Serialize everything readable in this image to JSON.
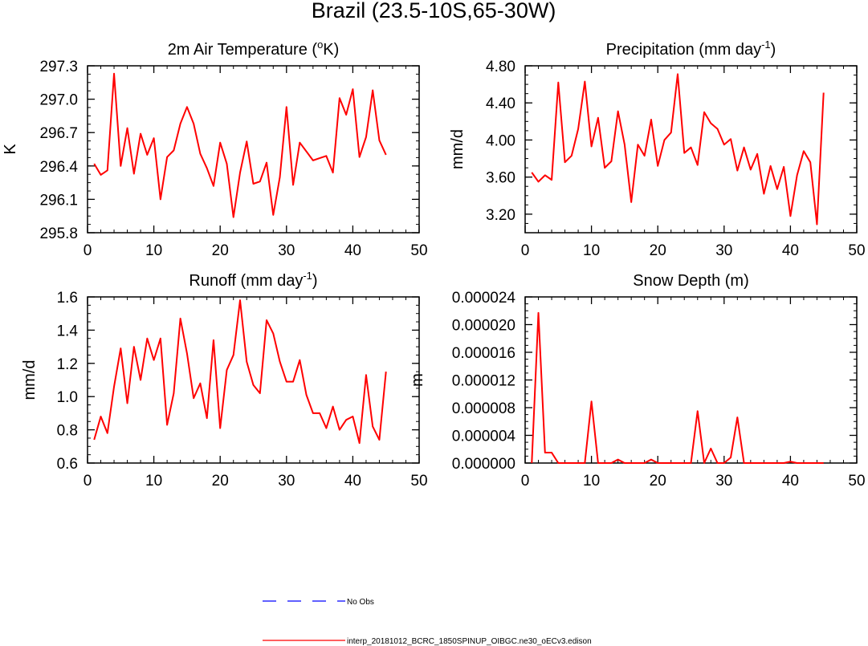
{
  "figure_title": "Brazil (23.5-10S,65-30W)",
  "colors": {
    "model_line": "#ff0000",
    "obs_line": "#0000ff",
    "axes": "#000000"
  },
  "legend": [
    {
      "label": "No Obs",
      "style": "dashed",
      "color": "#0000ff"
    },
    {
      "label": "interp_20181012_BCRC_1850SPINUP_OIBGC.ne30_oECv3.edison",
      "style": "solid",
      "color": "#ff0000"
    }
  ],
  "chart_data": [
    {
      "type": "line",
      "title": "2m Air Temperature (°K)",
      "title_base": "2m Air Temperature (",
      "title_sup": "o",
      "title_tail": "K)",
      "ylabel": "K",
      "xlabel": "",
      "xlim": [
        0,
        50
      ],
      "ylim": [
        295.8,
        297.3
      ],
      "xticks": [
        "0",
        "10",
        "20",
        "30",
        "40",
        "50"
      ],
      "yticks": [
        "295.8",
        "296.1",
        "296.4",
        "296.7",
        "297.0",
        "297.3"
      ],
      "x": [
        1,
        2,
        3,
        4,
        5,
        6,
        7,
        8,
        9,
        10,
        11,
        12,
        13,
        14,
        15,
        16,
        17,
        18,
        19,
        20,
        21,
        22,
        23,
        24,
        25,
        26,
        27,
        28,
        29,
        30,
        31,
        32,
        33,
        34,
        35,
        36,
        37,
        38,
        39,
        40,
        41,
        42,
        43,
        44,
        45
      ],
      "series": [
        {
          "values": [
            296.42,
            296.32,
            296.36,
            297.23,
            296.4,
            296.74,
            296.33,
            296.69,
            296.5,
            296.65,
            296.1,
            296.48,
            296.54,
            296.78,
            296.93,
            296.78,
            296.51,
            296.38,
            296.22,
            296.61,
            296.42,
            295.94,
            296.34,
            296.62,
            296.24,
            296.26,
            296.43,
            295.96,
            296.3,
            296.93,
            296.23,
            296.61,
            296.53,
            296.45,
            296.47,
            296.49,
            296.34,
            297.01,
            296.86,
            297.09,
            296.48,
            296.66,
            297.08,
            296.63,
            296.5
          ]
        }
      ]
    },
    {
      "type": "line",
      "title": "Precipitation (mm day-1)",
      "title_base": "Precipitation (mm day",
      "title_sup": "-1",
      "title_tail": ")",
      "ylabel": "mm/d",
      "xlabel": "",
      "xlim": [
        0,
        50
      ],
      "ylim": [
        3.0,
        4.8
      ],
      "xticks": [
        "0",
        "10",
        "20",
        "30",
        "40",
        "50"
      ],
      "yticks": [
        "3.20",
        "3.60",
        "4.00",
        "4.40",
        "4.80"
      ],
      "x": [
        1,
        2,
        3,
        4,
        5,
        6,
        7,
        8,
        9,
        10,
        11,
        12,
        13,
        14,
        15,
        16,
        17,
        18,
        19,
        20,
        21,
        22,
        23,
        24,
        25,
        26,
        27,
        28,
        29,
        30,
        31,
        32,
        33,
        34,
        35,
        36,
        37,
        38,
        39,
        40,
        41,
        42,
        43,
        44,
        45
      ],
      "series": [
        {
          "values": [
            3.65,
            3.55,
            3.62,
            3.57,
            4.62,
            3.76,
            3.83,
            4.12,
            4.63,
            3.93,
            4.24,
            3.7,
            3.77,
            4.31,
            3.95,
            3.33,
            3.95,
            3.83,
            4.22,
            3.72,
            4.0,
            4.08,
            4.71,
            3.86,
            3.92,
            3.73,
            4.3,
            4.18,
            4.12,
            3.95,
            4.01,
            3.67,
            3.92,
            3.68,
            3.85,
            3.42,
            3.72,
            3.47,
            3.71,
            3.18,
            3.62,
            3.88,
            3.76,
            3.09,
            4.51
          ]
        }
      ]
    },
    {
      "type": "line",
      "title": "Runoff (mm day-1)",
      "title_base": "Runoff (mm day",
      "title_sup": "-1",
      "title_tail": ")",
      "ylabel": "mm/d",
      "xlabel": "",
      "xlim": [
        0,
        50
      ],
      "ylim": [
        0.6,
        1.6
      ],
      "xticks": [
        "0",
        "10",
        "20",
        "30",
        "40",
        "50"
      ],
      "yticks": [
        "0.6",
        "0.8",
        "1.0",
        "1.2",
        "1.4",
        "1.6"
      ],
      "x": [
        1,
        2,
        3,
        4,
        5,
        6,
        7,
        8,
        9,
        10,
        11,
        12,
        13,
        14,
        15,
        16,
        17,
        18,
        19,
        20,
        21,
        22,
        23,
        24,
        25,
        26,
        27,
        28,
        29,
        30,
        31,
        32,
        33,
        34,
        35,
        36,
        37,
        38,
        39,
        40,
        41,
        42,
        43,
        44,
        45
      ],
      "series": [
        {
          "values": [
            0.74,
            0.88,
            0.78,
            1.06,
            1.29,
            0.96,
            1.3,
            1.1,
            1.35,
            1.22,
            1.35,
            0.83,
            1.02,
            1.47,
            1.26,
            0.99,
            1.08,
            0.87,
            1.34,
            0.81,
            1.16,
            1.25,
            1.58,
            1.21,
            1.07,
            1.02,
            1.46,
            1.38,
            1.21,
            1.09,
            1.09,
            1.22,
            1.01,
            0.9,
            0.9,
            0.81,
            0.94,
            0.8,
            0.86,
            0.88,
            0.72,
            1.13,
            0.82,
            0.74,
            1.15
          ]
        }
      ]
    },
    {
      "type": "line",
      "title": "Snow Depth (m)",
      "title_base": "Snow Depth (m)",
      "title_sup": "",
      "title_tail": "",
      "ylabel": "m",
      "xlabel": "",
      "xlim": [
        0,
        50
      ],
      "ylim": [
        0,
        2.4e-05
      ],
      "xticks": [
        "0",
        "10",
        "20",
        "30",
        "40",
        "50"
      ],
      "yticks": [
        "0.000000",
        "0.000004",
        "0.000008",
        "0.000012",
        "0.000016",
        "0.000020",
        "0.000024"
      ],
      "x": [
        1,
        2,
        3,
        4,
        5,
        6,
        7,
        8,
        9,
        10,
        11,
        12,
        13,
        14,
        15,
        16,
        17,
        18,
        19,
        20,
        21,
        22,
        23,
        24,
        25,
        26,
        27,
        28,
        29,
        30,
        31,
        32,
        33,
        34,
        35,
        36,
        37,
        38,
        39,
        40,
        41,
        42,
        43,
        44,
        45
      ],
      "series": [
        {
          "values": [
            0,
            2.17e-05,
            1.5e-06,
            1.5e-06,
            0,
            0,
            0,
            0,
            0,
            8.9e-06,
            0,
            0,
            0,
            5e-07,
            0,
            0,
            0,
            0,
            5e-07,
            0,
            0,
            0,
            0,
            0,
            0,
            7.5e-06,
            0,
            2.1e-06,
            0,
            0,
            8e-07,
            6.6e-06,
            0,
            0,
            0,
            0,
            0,
            0,
            0,
            2e-07,
            0,
            0,
            0,
            0,
            0
          ]
        }
      ]
    }
  ]
}
